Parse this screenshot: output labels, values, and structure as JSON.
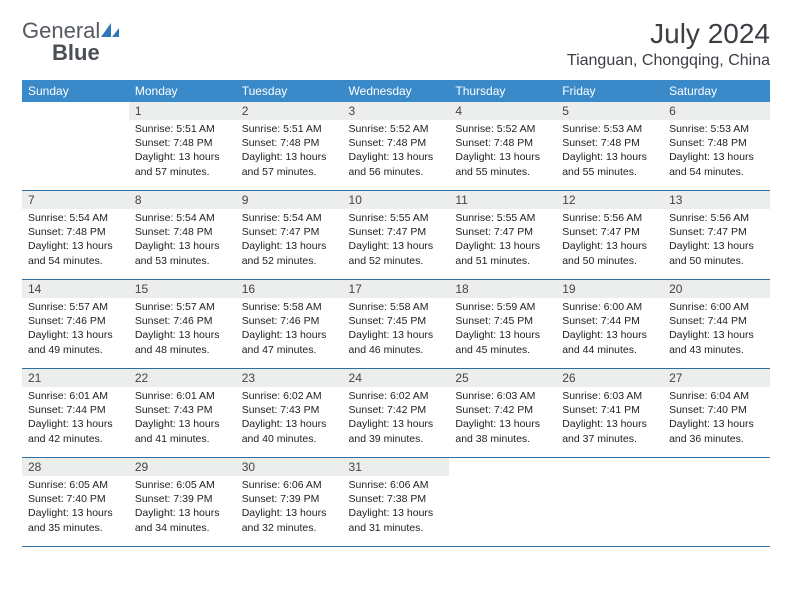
{
  "logo": {
    "part1": "General",
    "part2": "Blue"
  },
  "title": "July 2024",
  "location": "Tianguan, Chongqing, China",
  "colors": {
    "header_bg": "#3a89c9",
    "header_text": "#ffffff",
    "daynum_bg": "#eceded",
    "rule": "#2e6fa3",
    "logo_gray": "#555a60",
    "logo_blue": "#2f78b8"
  },
  "weekdays": [
    "Sunday",
    "Monday",
    "Tuesday",
    "Wednesday",
    "Thursday",
    "Friday",
    "Saturday"
  ],
  "first_weekday_index": 1,
  "days": [
    {
      "n": 1,
      "sunrise": "5:51 AM",
      "sunset": "7:48 PM",
      "daylight": "13 hours and 57 minutes."
    },
    {
      "n": 2,
      "sunrise": "5:51 AM",
      "sunset": "7:48 PM",
      "daylight": "13 hours and 57 minutes."
    },
    {
      "n": 3,
      "sunrise": "5:52 AM",
      "sunset": "7:48 PM",
      "daylight": "13 hours and 56 minutes."
    },
    {
      "n": 4,
      "sunrise": "5:52 AM",
      "sunset": "7:48 PM",
      "daylight": "13 hours and 55 minutes."
    },
    {
      "n": 5,
      "sunrise": "5:53 AM",
      "sunset": "7:48 PM",
      "daylight": "13 hours and 55 minutes."
    },
    {
      "n": 6,
      "sunrise": "5:53 AM",
      "sunset": "7:48 PM",
      "daylight": "13 hours and 54 minutes."
    },
    {
      "n": 7,
      "sunrise": "5:54 AM",
      "sunset": "7:48 PM",
      "daylight": "13 hours and 54 minutes."
    },
    {
      "n": 8,
      "sunrise": "5:54 AM",
      "sunset": "7:48 PM",
      "daylight": "13 hours and 53 minutes."
    },
    {
      "n": 9,
      "sunrise": "5:54 AM",
      "sunset": "7:47 PM",
      "daylight": "13 hours and 52 minutes."
    },
    {
      "n": 10,
      "sunrise": "5:55 AM",
      "sunset": "7:47 PM",
      "daylight": "13 hours and 52 minutes."
    },
    {
      "n": 11,
      "sunrise": "5:55 AM",
      "sunset": "7:47 PM",
      "daylight": "13 hours and 51 minutes."
    },
    {
      "n": 12,
      "sunrise": "5:56 AM",
      "sunset": "7:47 PM",
      "daylight": "13 hours and 50 minutes."
    },
    {
      "n": 13,
      "sunrise": "5:56 AM",
      "sunset": "7:47 PM",
      "daylight": "13 hours and 50 minutes."
    },
    {
      "n": 14,
      "sunrise": "5:57 AM",
      "sunset": "7:46 PM",
      "daylight": "13 hours and 49 minutes."
    },
    {
      "n": 15,
      "sunrise": "5:57 AM",
      "sunset": "7:46 PM",
      "daylight": "13 hours and 48 minutes."
    },
    {
      "n": 16,
      "sunrise": "5:58 AM",
      "sunset": "7:46 PM",
      "daylight": "13 hours and 47 minutes."
    },
    {
      "n": 17,
      "sunrise": "5:58 AM",
      "sunset": "7:45 PM",
      "daylight": "13 hours and 46 minutes."
    },
    {
      "n": 18,
      "sunrise": "5:59 AM",
      "sunset": "7:45 PM",
      "daylight": "13 hours and 45 minutes."
    },
    {
      "n": 19,
      "sunrise": "6:00 AM",
      "sunset": "7:44 PM",
      "daylight": "13 hours and 44 minutes."
    },
    {
      "n": 20,
      "sunrise": "6:00 AM",
      "sunset": "7:44 PM",
      "daylight": "13 hours and 43 minutes."
    },
    {
      "n": 21,
      "sunrise": "6:01 AM",
      "sunset": "7:44 PM",
      "daylight": "13 hours and 42 minutes."
    },
    {
      "n": 22,
      "sunrise": "6:01 AM",
      "sunset": "7:43 PM",
      "daylight": "13 hours and 41 minutes."
    },
    {
      "n": 23,
      "sunrise": "6:02 AM",
      "sunset": "7:43 PM",
      "daylight": "13 hours and 40 minutes."
    },
    {
      "n": 24,
      "sunrise": "6:02 AM",
      "sunset": "7:42 PM",
      "daylight": "13 hours and 39 minutes."
    },
    {
      "n": 25,
      "sunrise": "6:03 AM",
      "sunset": "7:42 PM",
      "daylight": "13 hours and 38 minutes."
    },
    {
      "n": 26,
      "sunrise": "6:03 AM",
      "sunset": "7:41 PM",
      "daylight": "13 hours and 37 minutes."
    },
    {
      "n": 27,
      "sunrise": "6:04 AM",
      "sunset": "7:40 PM",
      "daylight": "13 hours and 36 minutes."
    },
    {
      "n": 28,
      "sunrise": "6:05 AM",
      "sunset": "7:40 PM",
      "daylight": "13 hours and 35 minutes."
    },
    {
      "n": 29,
      "sunrise": "6:05 AM",
      "sunset": "7:39 PM",
      "daylight": "13 hours and 34 minutes."
    },
    {
      "n": 30,
      "sunrise": "6:06 AM",
      "sunset": "7:39 PM",
      "daylight": "13 hours and 32 minutes."
    },
    {
      "n": 31,
      "sunrise": "6:06 AM",
      "sunset": "7:38 PM",
      "daylight": "13 hours and 31 minutes."
    }
  ],
  "labels": {
    "sunrise_prefix": "Sunrise: ",
    "sunset_prefix": "Sunset: ",
    "daylight_prefix": "Daylight: "
  }
}
